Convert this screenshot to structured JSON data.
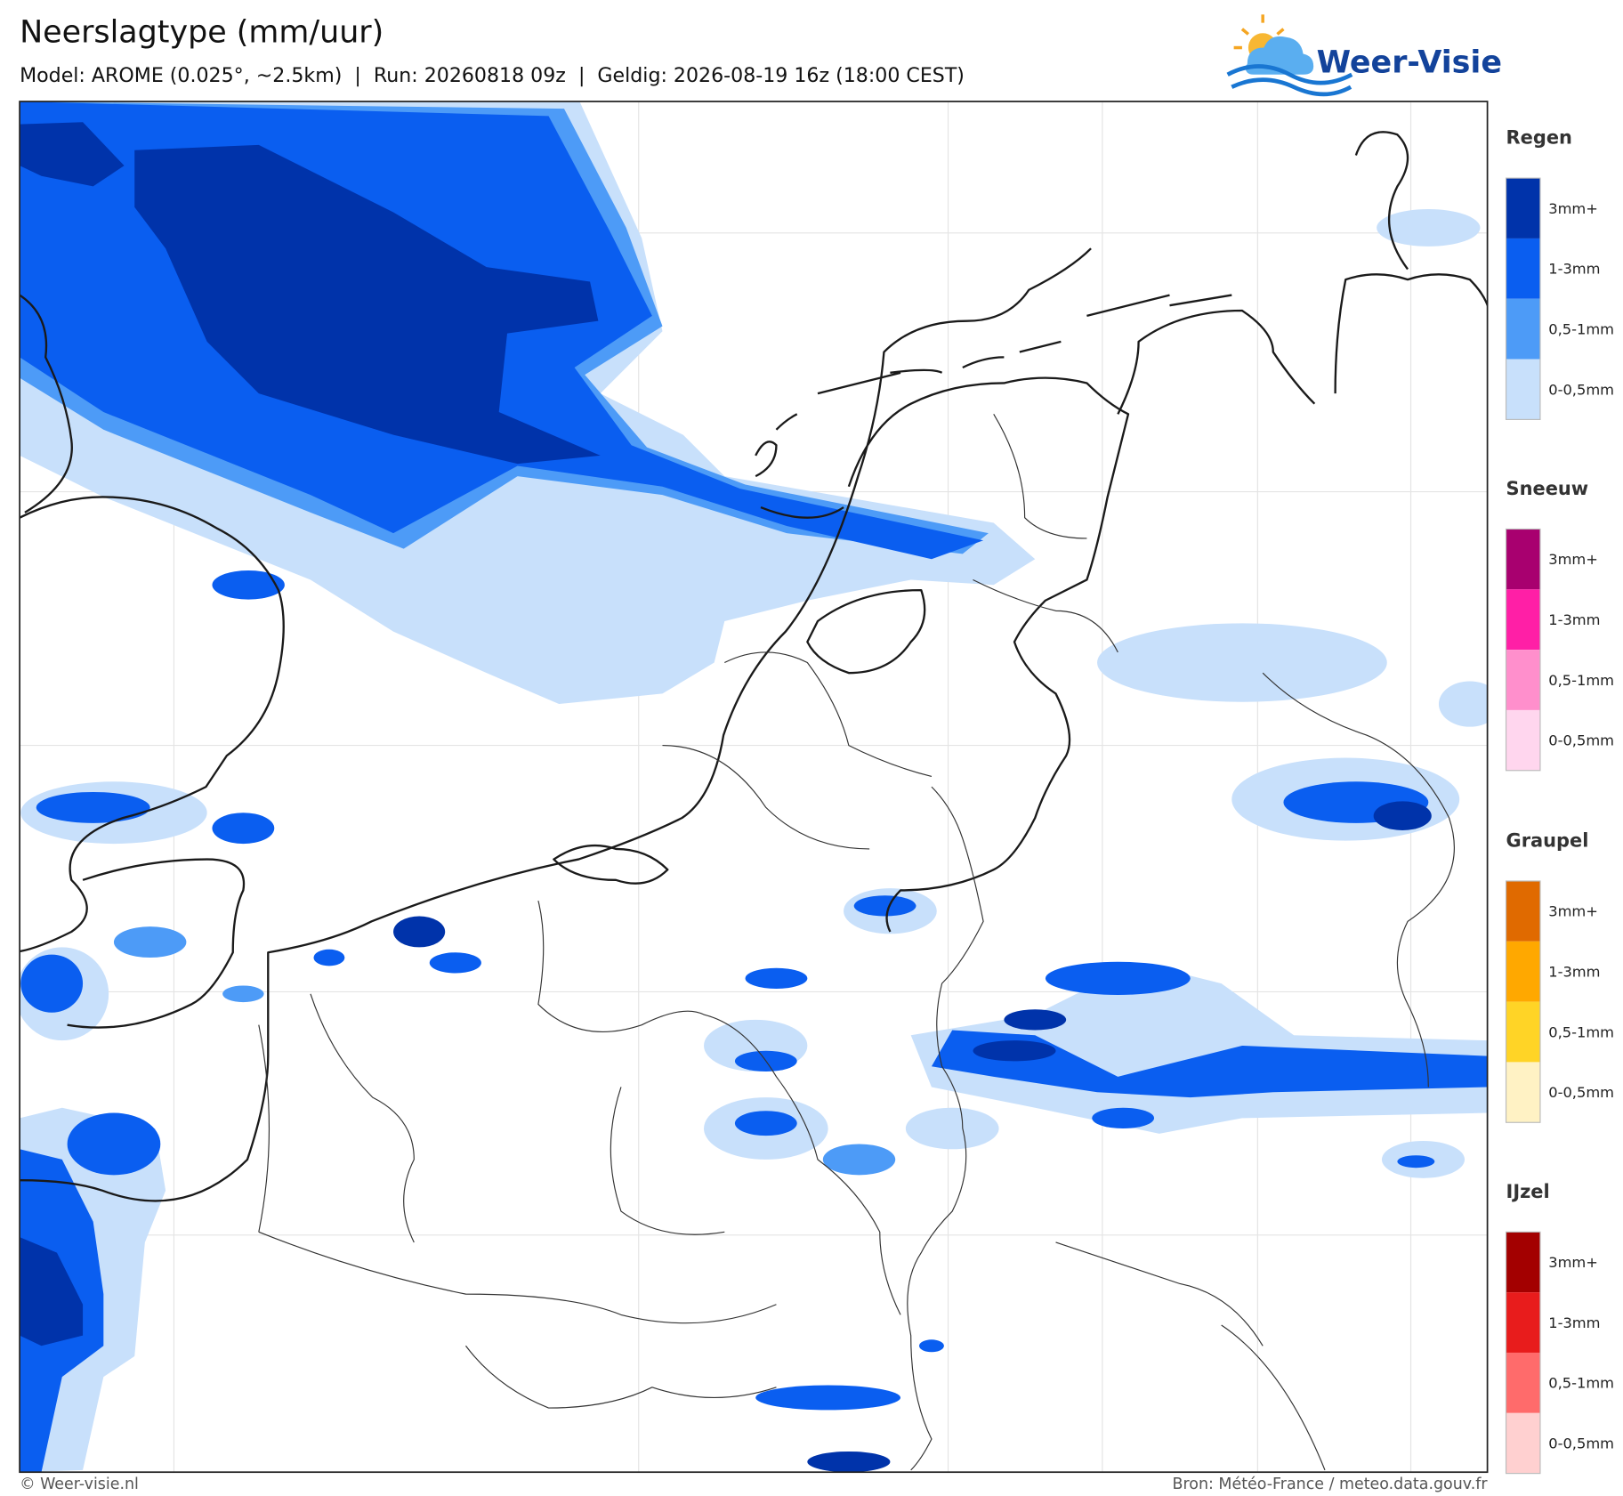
{
  "header": {
    "title": "Neerslagtype (mm/uur)",
    "subtitle": "Model: AROME (0.025°, ~2.5km)  |  Run: 20260818 09z  |  Geldig: 2026-08-19 16z (18:00 CEST)"
  },
  "logo": {
    "text": "Weer-Visie"
  },
  "legend": [
    {
      "title": "Regen",
      "items": [
        {
          "label": "3mm+",
          "color": "#0033aa"
        },
        {
          "label": "1-3mm",
          "color": "#0a5ef0"
        },
        {
          "label": "0,5-1mm",
          "color": "#4d9bf7"
        },
        {
          "label": "0-0,5mm",
          "color": "#c8e0fb"
        }
      ]
    },
    {
      "title": "Sneeuw",
      "items": [
        {
          "label": "3mm+",
          "color": "#a8006f"
        },
        {
          "label": "1-3mm",
          "color": "#ff1fa6"
        },
        {
          "label": "0,5-1mm",
          "color": "#ff8fcc"
        },
        {
          "label": "0-0,5mm",
          "color": "#ffd6ee"
        }
      ]
    },
    {
      "title": "Graupel",
      "items": [
        {
          "label": "3mm+",
          "color": "#e06a00"
        },
        {
          "label": "1-3mm",
          "color": "#ffa800"
        },
        {
          "label": "0,5-1mm",
          "color": "#ffd426"
        },
        {
          "label": "0-0,5mm",
          "color": "#fff2c4"
        }
      ]
    },
    {
      "title": "IJzel",
      "items": [
        {
          "label": "3mm+",
          "color": "#a30000"
        },
        {
          "label": "1-3mm",
          "color": "#e81c1c"
        },
        {
          "label": "0,5-1mm",
          "color": "#ff6b6b"
        },
        {
          "label": "0-0,5mm",
          "color": "#ffd0d0"
        }
      ]
    }
  ],
  "footer": {
    "left": "© Weer-visie.nl",
    "right": "Bron: Météo-France / meteo.data.gouv.fr"
  }
}
